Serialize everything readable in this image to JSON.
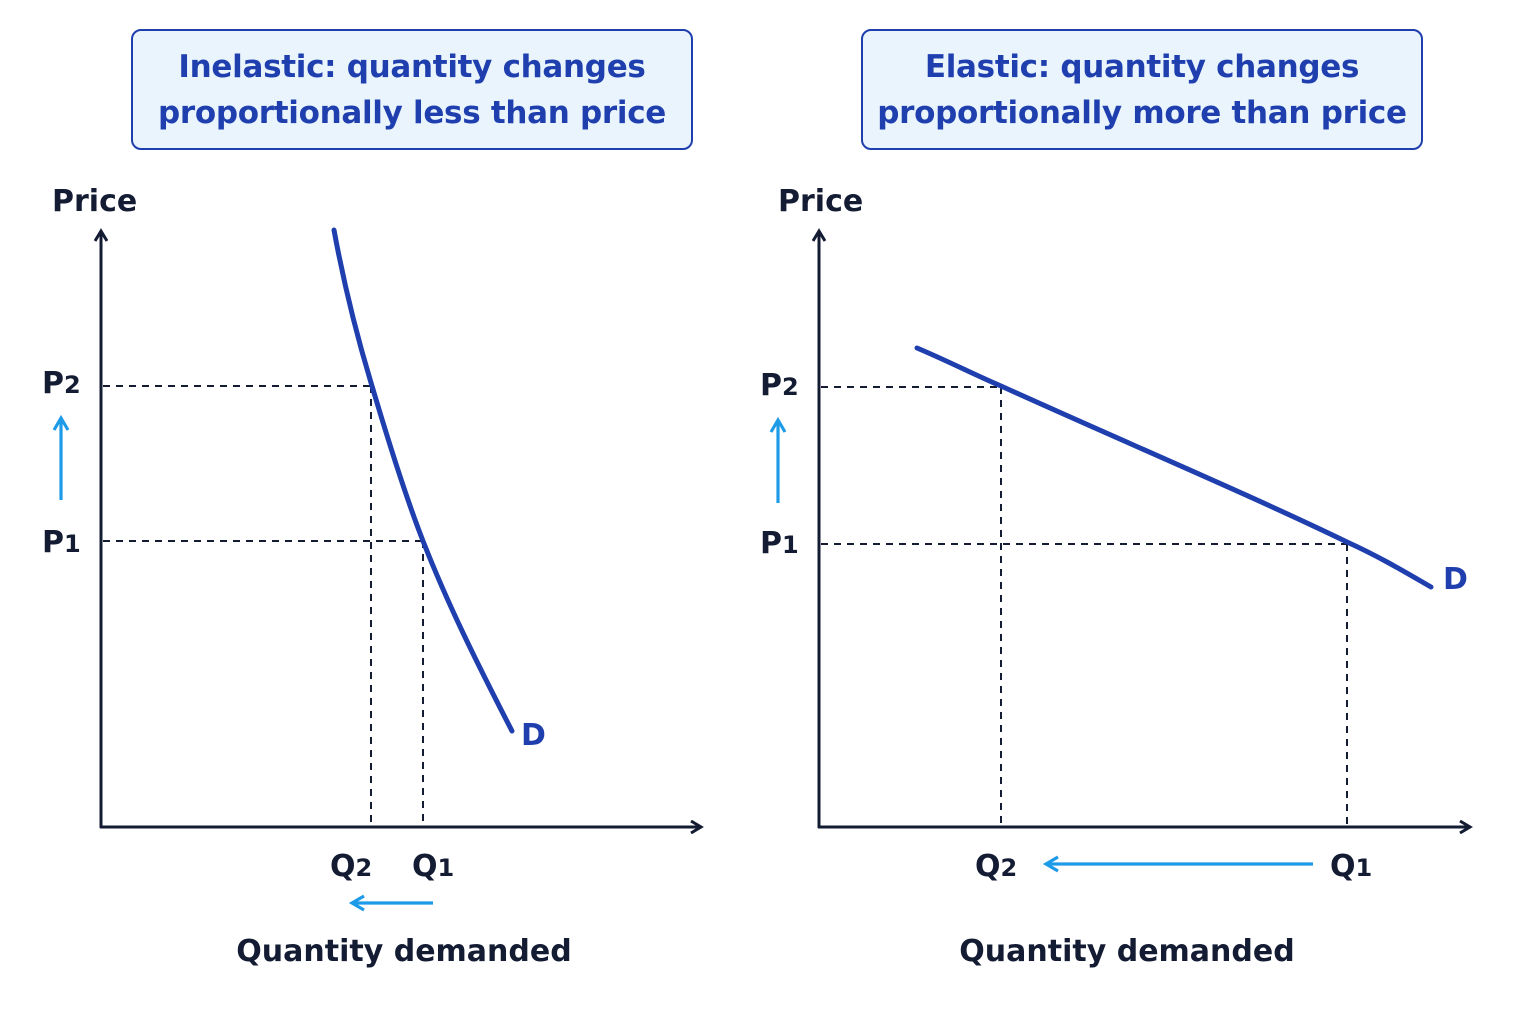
{
  "colors": {
    "axis": "#141c33",
    "curve": "#1f3fae",
    "arrow": "#1e9be8",
    "title_bg": "#e9f4fd",
    "title_border": "#1f3fae"
  },
  "panels": [
    {
      "id": "inelastic",
      "title_line1": "Inelastic: quantity changes",
      "title_line2": "proportionally less than price",
      "y_axis_label": "Price",
      "x_axis_label": "Quantity demanded",
      "p2_label": "P2",
      "p1_label": "P1",
      "q2_label": "Q2",
      "q1_label": "Q1",
      "curve_label": "D"
    },
    {
      "id": "elastic",
      "title_line1": "Elastic: quantity changes",
      "title_line2": "proportionally more than price",
      "y_axis_label": "Price",
      "x_axis_label": "Quantity demanded",
      "p2_label": "P2",
      "p1_label": "P1",
      "q2_label": "Q2",
      "q1_label": "Q1",
      "curve_label": "D"
    }
  ]
}
